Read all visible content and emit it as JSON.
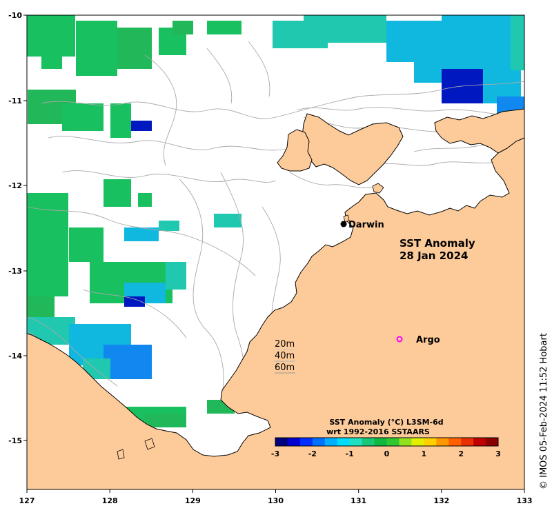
{
  "map": {
    "title_line1": "SST Anomaly",
    "title_line2": "28 Jan 2024",
    "credit": "© IMOS 05-Feb-2024 11:52 Hobart",
    "x_ticks": [
      "127",
      "128",
      "129",
      "130",
      "131",
      "132",
      "133"
    ],
    "y_ticks": [
      "-10",
      "-11",
      "-12",
      "-13",
      "-14",
      "-15"
    ],
    "places": [
      {
        "id": "darwin",
        "label": "Darwin",
        "marker": "filled-circle"
      },
      {
        "id": "argo",
        "label": "Argo",
        "marker": "hollow-circle"
      }
    ],
    "depth_contours": [
      "20m",
      "40m",
      "60m"
    ],
    "colorbar": {
      "title_line1": "SST Anomaly (°C) L3SM-6d",
      "title_line2": "wrt 1992-2016 SSTAARS",
      "ticks": [
        "-3",
        "-2",
        "-1",
        "0",
        "1",
        "2",
        "3"
      ],
      "min": -3,
      "max": 3,
      "colors": [
        "#00007f",
        "#0000d0",
        "#0030ff",
        "#0070ff",
        "#00b0ff",
        "#00dcff",
        "#20e0c0",
        "#18c878",
        "#10b840",
        "#30c830",
        "#90e020",
        "#e0f000",
        "#ffd000",
        "#ff9800",
        "#ff6000",
        "#e83000",
        "#c00000",
        "#8a0000"
      ]
    },
    "colors": {
      "land": "#fdcb9a",
      "coast": "#000000",
      "contour": "#a8a8a8",
      "argo_marker": "#ff00ff"
    }
  }
}
